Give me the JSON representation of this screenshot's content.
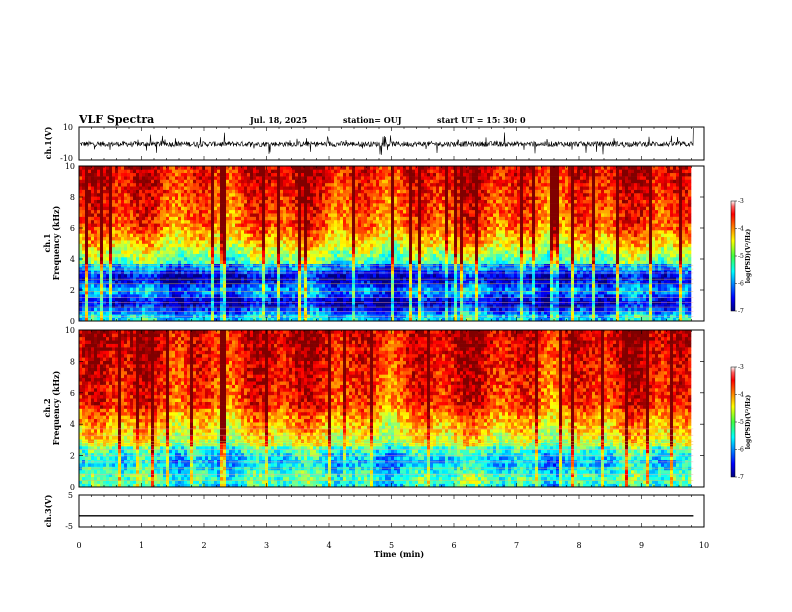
{
  "header": {
    "title": "VLF Spectra",
    "date": "Jul. 18, 2025",
    "station": "station= OUJ",
    "start": "start  UT =   15: 30: 0"
  },
  "chart_data": [
    {
      "type": "line",
      "name": "ch1-waveform",
      "ylabel": "ch.1(V)",
      "ylim": [
        -10,
        10
      ],
      "yticks": [
        "10",
        "-10"
      ],
      "xlim": [
        0,
        10
      ],
      "note_level_v": 0
    },
    {
      "type": "heatmap",
      "name": "ch1-spectrogram",
      "ylabel_line1": "ch.1",
      "ylabel_line2": "Frequency (kHz)",
      "ylim": [
        0,
        10
      ],
      "yticks": [
        "0",
        "2",
        "4",
        "6",
        "8",
        "10"
      ],
      "xlim": [
        0,
        9.83
      ],
      "colorbar": {
        "label": "log(PSD)(V²/Hz)",
        "range": [
          -7,
          -3
        ],
        "ticks": [
          "-3",
          "-4",
          "-5",
          "-6",
          "-7"
        ]
      }
    },
    {
      "type": "heatmap",
      "name": "ch2-spectrogram",
      "ylabel_line1": "ch.2",
      "ylabel_line2": "Frequency (kHz)",
      "ylim": [
        0,
        10
      ],
      "yticks": [
        "0",
        "2",
        "4",
        "6",
        "8",
        "10"
      ],
      "xlim": [
        0,
        9.83
      ],
      "colorbar": {
        "label": "log(PSD)(V²/Hz)",
        "range": [
          -7,
          -3
        ],
        "ticks": [
          "-3",
          "-4",
          "-5",
          "-6",
          "-7"
        ]
      }
    },
    {
      "type": "line",
      "name": "ch3-waveform",
      "ylabel": "ch.3(V)",
      "ylim": [
        -5,
        5
      ],
      "yticks": [
        "5",
        "-5"
      ],
      "xlim": [
        0,
        9.83
      ],
      "level_v": -1.5
    }
  ],
  "xaxis": {
    "label": "Time (min)",
    "range": [
      0,
      10
    ],
    "ticks": [
      "0",
      "1",
      "2",
      "3",
      "4",
      "5",
      "6",
      "7",
      "8",
      "9",
      "10"
    ]
  }
}
